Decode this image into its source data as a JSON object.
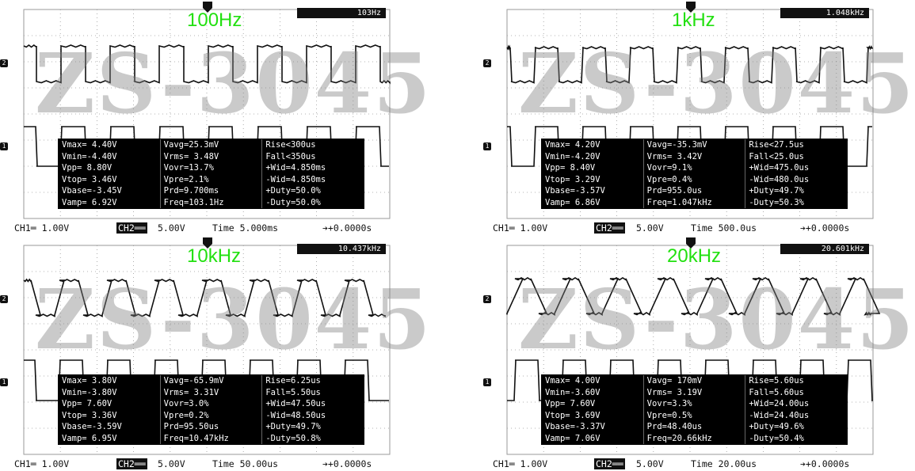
{
  "panels": [
    {
      "title": "100Hz",
      "freq_readout": "103Hz",
      "watermark": "ZS-3045",
      "ch1_marker": "1",
      "ch2_marker": "2",
      "measurements": [
        [
          "Vmax= 4.40V",
          "Vavg=25.3mV",
          "Rise<300us"
        ],
        [
          "Vmin=-4.40V",
          "Vrms= 3.48V",
          "Fall<350us"
        ],
        [
          "Vpp= 8.80V",
          "Vovr=13.7%",
          "+Wid=4.850ms"
        ],
        [
          "Vtop= 3.46V",
          "Vpre=2.1%",
          "-Wid=4.850ms"
        ],
        [
          "Vbase=-3.45V",
          "Prd=9.700ms",
          "+Duty=50.0%"
        ],
        [
          "Vamp= 6.92V",
          "Freq=103.1Hz",
          "-Duty=50.0%"
        ]
      ],
      "status": {
        "ch1": "CH1═ 1.00V",
        "ch2": "CH2══",
        "ch2_val": "5.00V",
        "time": "Time 5.000ms",
        "trig": "➔+0.0000s"
      }
    },
    {
      "title": "1kHz",
      "freq_readout": "1.048kHz",
      "watermark": "ZS-3045",
      "ch1_marker": "1",
      "ch2_marker": "2",
      "measurements": [
        [
          "Vmax= 4.20V",
          "Vavg=-35.3mV",
          "Rise<27.5us"
        ],
        [
          "Vmin=-4.20V",
          "Vrms= 3.42V",
          "Fall<25.0us"
        ],
        [
          "Vpp= 8.40V",
          "Vovr=9.1%",
          "+Wid=475.0us"
        ],
        [
          "Vtop= 3.29V",
          "Vpre=0.4%",
          "-Wid=480.0us"
        ],
        [
          "Vbase=-3.57V",
          "Prd=955.0us",
          "+Duty=49.7%"
        ],
        [
          "Vamp= 6.86V",
          "Freq=1.047kHz",
          "-Duty=50.3%"
        ]
      ],
      "status": {
        "ch1": "CH1═ 1.00V",
        "ch2": "CH2══",
        "ch2_val": "5.00V",
        "time": "Time 500.0us",
        "trig": "➔+0.0000s"
      }
    },
    {
      "title": "10kHz",
      "freq_readout": "10.437kHz",
      "watermark": "ZS-3045",
      "ch1_marker": "1",
      "ch2_marker": "2",
      "measurements": [
        [
          "Vmax= 3.80V",
          "Vavg=-65.9mV",
          "Rise=6.25us"
        ],
        [
          "Vmin=-3.80V",
          "Vrms= 3.31V",
          "Fall=5.50us"
        ],
        [
          "Vpp= 7.60V",
          "Vovr=3.0%",
          "+Wid=47.50us"
        ],
        [
          "Vtop= 3.36V",
          "Vpre=0.2%",
          "-Wid=48.50us"
        ],
        [
          "Vbase=-3.59V",
          "Prd=95.50us",
          "+Duty=49.7%"
        ],
        [
          "Vamp= 6.95V",
          "Freq=10.47kHz",
          "-Duty=50.8%"
        ]
      ],
      "status": {
        "ch1": "CH1═ 1.00V",
        "ch2": "CH2══",
        "ch2_val": "5.00V",
        "time": "Time 50.00us",
        "trig": "➔+0.0000s"
      }
    },
    {
      "title": "20kHz",
      "freq_readout": "20.601kHz",
      "watermark": "ZS-3045",
      "ch1_marker": "1",
      "ch2_marker": "2",
      "measurements": [
        [
          "Vmax= 4.00V",
          "Vavg= 170mV",
          "Rise=5.60us"
        ],
        [
          "Vmin=-3.60V",
          "Vrms= 3.19V",
          "Fall=5.60us"
        ],
        [
          "Vpp= 7.60V",
          "Vovr=3.3%",
          "+Wid=24.00us"
        ],
        [
          "Vtop= 3.69V",
          "Vpre=0.5%",
          "-Wid=24.40us"
        ],
        [
          "Vbase=-3.37V",
          "Prd=48.40us",
          "+Duty=49.6%"
        ],
        [
          "Vamp= 7.06V",
          "Freq=20.66kHz",
          "-Duty=50.4%"
        ]
      ],
      "status": {
        "ch1": "CH1═ 1.00V",
        "ch2": "CH2══",
        "ch2_val": "5.00V",
        "time": "Time 20.00us",
        "trig": "➔+0.0000s"
      }
    }
  ],
  "colors": {
    "title": "#22e010",
    "watermark": "#808080",
    "trace": "#111111",
    "grid": "#9a9a9a"
  }
}
